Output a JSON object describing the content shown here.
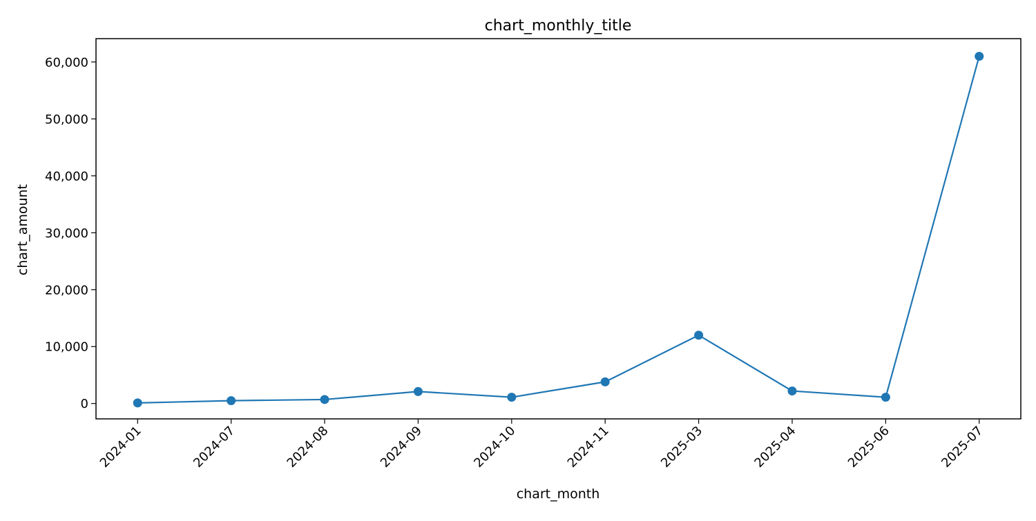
{
  "colors": {
    "line": "#1f77b4",
    "axis": "#000000",
    "background": "#ffffff"
  },
  "chart_data": {
    "type": "line",
    "title": "chart_monthly_title",
    "xlabel": "chart_month",
    "ylabel": "chart_amount",
    "categories": [
      "2024-01",
      "2024-07",
      "2024-08",
      "2024-09",
      "2024-10",
      "2024-11",
      "2025-03",
      "2025-04",
      "2025-06",
      "2025-07"
    ],
    "series": [
      {
        "values": [
          100,
          500,
          700,
          2100,
          1100,
          3800,
          12000,
          2200,
          1100,
          61000
        ],
        "marker": "circle"
      }
    ],
    "ylim": [
      -2700,
      64100
    ],
    "yticks": [
      0,
      10000,
      20000,
      30000,
      40000,
      50000,
      60000
    ],
    "ytick_labels": [
      "0",
      "10,000",
      "20,000",
      "30,000",
      "40,000",
      "50,000",
      "60,000"
    ],
    "grid": false,
    "legend": "none",
    "x_tick_rotation": "45-degrees"
  }
}
